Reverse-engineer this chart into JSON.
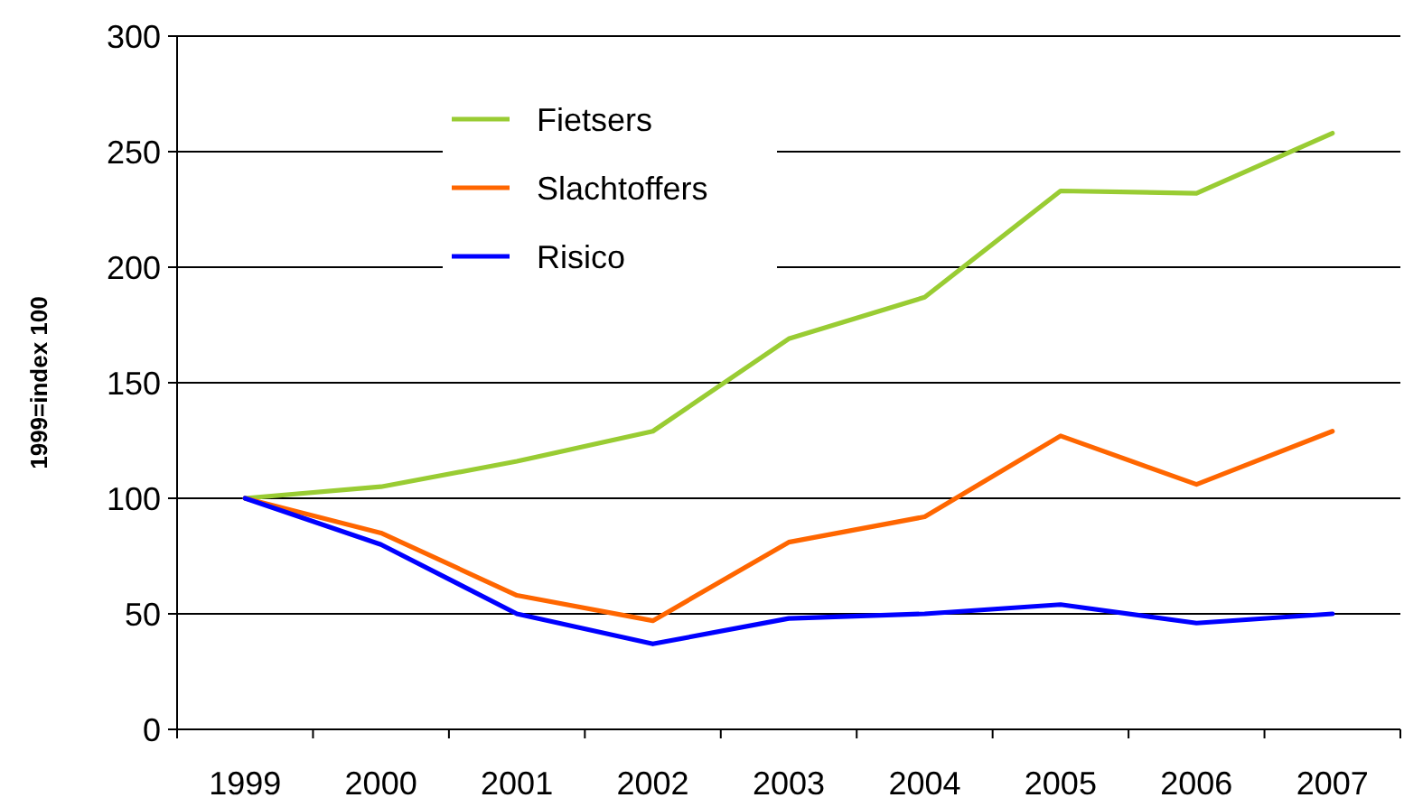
{
  "chart_data": {
    "type": "line",
    "ylabel": "1999=index 100",
    "categories": [
      "1999",
      "2000",
      "2001",
      "2002",
      "2003",
      "2004",
      "2005",
      "2006",
      "2007"
    ],
    "series": [
      {
        "name": "Fietsers",
        "color": "#99cc33",
        "values": [
          100,
          105,
          116,
          129,
          169,
          187,
          233,
          232,
          258
        ]
      },
      {
        "name": "Slachtoffers",
        "color": "#ff6600",
        "values": [
          100,
          85,
          58,
          47,
          81,
          92,
          127,
          106,
          129
        ]
      },
      {
        "name": "Risico",
        "color": "#0000ff",
        "values": [
          100,
          80,
          50,
          37,
          48,
          50,
          54,
          46,
          50
        ]
      }
    ],
    "ylim": [
      0,
      300
    ],
    "yticks": [
      0,
      50,
      100,
      150,
      200,
      250,
      300
    ],
    "grid": "y",
    "legend": "top left",
    "marker": "none",
    "line_style": "solid"
  }
}
